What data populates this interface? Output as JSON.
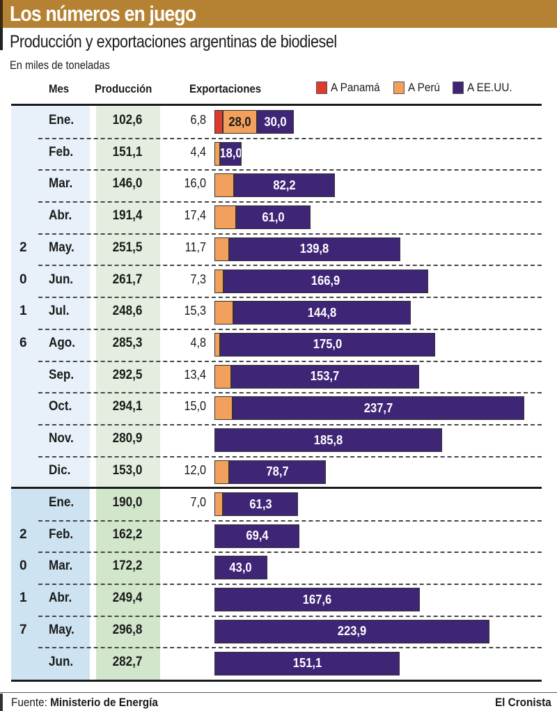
{
  "header": {
    "title": "Los números en juego",
    "subtitle": "Producción y exportaciones argentinas de biodiesel",
    "units": "En miles de toneladas"
  },
  "columns": {
    "mes": "Mes",
    "produccion": "Producción",
    "exportaciones": "Exportaciones"
  },
  "legend": [
    {
      "label": "A Panamá",
      "color": "#e03a2e"
    },
    {
      "label": "A Perú",
      "color": "#f2a05c"
    },
    {
      "label": "A EE.UU.",
      "color": "#3e2576"
    }
  ],
  "footer": {
    "source_label": "Fuente:",
    "source": "Ministerio de Energía",
    "publisher": "El Cronista"
  },
  "chart_data": {
    "type": "bar",
    "stacked": true,
    "orientation": "horizontal",
    "title": "Producción y exportaciones argentinas de biodiesel",
    "subtitle": "En miles de toneladas",
    "series_names": [
      "A Panamá",
      "A Perú",
      "A EE.UU."
    ],
    "years": [
      {
        "year": "2016",
        "rows": [
          {
            "mes": "Ene.",
            "produccion": "102,6",
            "exp_label": "6,8",
            "panama": 6.8,
            "peru": 28.0,
            "usa": 30.0,
            "peru_label": "28,0",
            "usa_label": "30,0"
          },
          {
            "mes": "Feb.",
            "produccion": "151,1",
            "exp_label": "4,4",
            "panama": 0,
            "peru": 4.4,
            "usa": 18.0,
            "peru_label": "",
            "usa_label": "18,0"
          },
          {
            "mes": "Mar.",
            "produccion": "146,0",
            "exp_label": "16,0",
            "panama": 0,
            "peru": 16.0,
            "usa": 82.2,
            "peru_label": "",
            "usa_label": "82,2"
          },
          {
            "mes": "Abr.",
            "produccion": "191,4",
            "exp_label": "17,4",
            "panama": 0,
            "peru": 17.4,
            "usa": 61.0,
            "peru_label": "",
            "usa_label": "61,0"
          },
          {
            "mes": "May.",
            "produccion": "251,5",
            "exp_label": "11,7",
            "panama": 0,
            "peru": 11.7,
            "usa": 139.8,
            "peru_label": "",
            "usa_label": "139,8"
          },
          {
            "mes": "Jun.",
            "produccion": "261,7",
            "exp_label": "7,3",
            "panama": 0,
            "peru": 7.3,
            "usa": 166.9,
            "peru_label": "",
            "usa_label": "166,9"
          },
          {
            "mes": "Jul.",
            "produccion": "248,6",
            "exp_label": "15,3",
            "panama": 0,
            "peru": 15.3,
            "usa": 144.8,
            "peru_label": "",
            "usa_label": "144,8"
          },
          {
            "mes": "Ago.",
            "produccion": "285,3",
            "exp_label": "4,8",
            "panama": 0,
            "peru": 4.8,
            "usa": 175.0,
            "peru_label": "",
            "usa_label": "175,0"
          },
          {
            "mes": "Sep.",
            "produccion": "292,5",
            "exp_label": "13,4",
            "panama": 0,
            "peru": 13.4,
            "usa": 153.7,
            "peru_label": "",
            "usa_label": "153,7"
          },
          {
            "mes": "Oct.",
            "produccion": "294,1",
            "exp_label": "15,0",
            "panama": 0,
            "peru": 15.0,
            "usa": 237.7,
            "peru_label": "",
            "usa_label": "237,7"
          },
          {
            "mes": "Nov.",
            "produccion": "280,9",
            "exp_label": "",
            "panama": 0,
            "peru": 0,
            "usa": 185.8,
            "peru_label": "",
            "usa_label": "185,8"
          },
          {
            "mes": "Dic.",
            "produccion": "153,0",
            "exp_label": "12,0",
            "panama": 0,
            "peru": 12.0,
            "usa": 78.7,
            "peru_label": "",
            "usa_label": "78,7"
          }
        ]
      },
      {
        "year": "2017",
        "rows": [
          {
            "mes": "Ene.",
            "produccion": "190,0",
            "exp_label": "7,0",
            "panama": 0,
            "peru": 7.0,
            "usa": 61.3,
            "peru_label": "",
            "usa_label": "61,3"
          },
          {
            "mes": "Feb.",
            "produccion": "162,2",
            "exp_label": "",
            "panama": 0,
            "peru": 0,
            "usa": 69.4,
            "peru_label": "",
            "usa_label": "69,4"
          },
          {
            "mes": "Mar.",
            "produccion": "172,2",
            "exp_label": "",
            "panama": 0,
            "peru": 0,
            "usa": 43.0,
            "peru_label": "",
            "usa_label": "43,0"
          },
          {
            "mes": "Abr.",
            "produccion": "249,4",
            "exp_label": "",
            "panama": 0,
            "peru": 0,
            "usa": 167.6,
            "peru_label": "",
            "usa_label": "167,6"
          },
          {
            "mes": "May.",
            "produccion": "296,8",
            "exp_label": "",
            "panama": 0,
            "peru": 0,
            "usa": 223.9,
            "peru_label": "",
            "usa_label": "223,9"
          },
          {
            "mes": "Jun.",
            "produccion": "282,7",
            "exp_label": "",
            "panama": 0,
            "peru": 0,
            "usa": 151.1,
            "peru_label": "",
            "usa_label": "151,1"
          }
        ]
      }
    ]
  }
}
